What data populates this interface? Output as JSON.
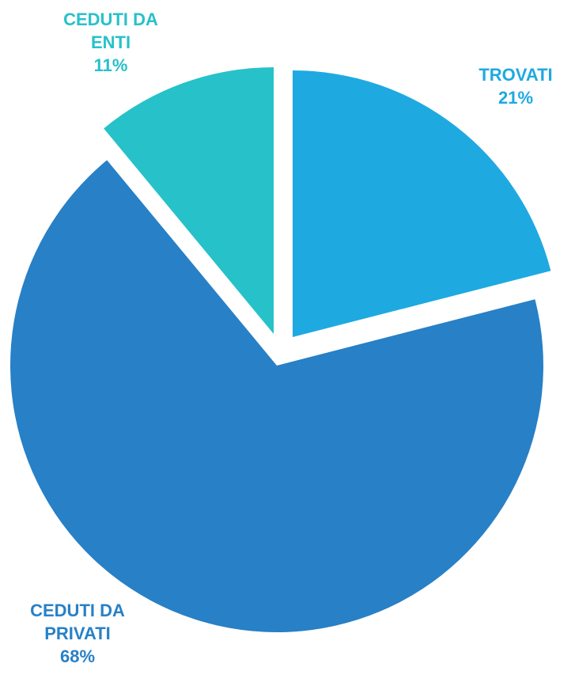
{
  "chart_data": {
    "type": "pie",
    "categories": [
      "TROVATI",
      "CEDUTI DA PRIVATI",
      "CEDUTI DA ENTI"
    ],
    "values": [
      21,
      68,
      11
    ],
    "value_labels": [
      "21%",
      "68%",
      "11%"
    ],
    "colors": [
      "#1ea9e1",
      "#2880c6",
      "#27c1c9"
    ]
  }
}
